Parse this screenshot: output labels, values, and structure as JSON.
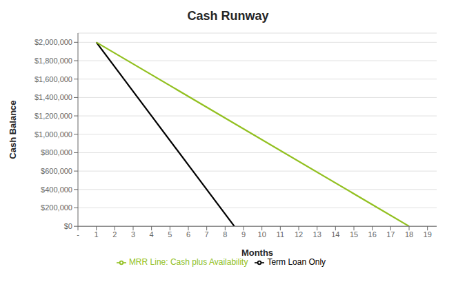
{
  "chart_data": {
    "type": "line",
    "title": "Cash Runway",
    "xlabel": "Months",
    "ylabel": "Cash Balance",
    "series": [
      {
        "name": "Term Loan Only",
        "color": "#000000",
        "x": [
          1,
          8.5
        ],
        "values": [
          2000000,
          0
        ]
      },
      {
        "name": "MRR Line: Cash plus Availability",
        "color": "#92c020",
        "x": [
          1,
          18
        ],
        "values": [
          2000000,
          0
        ]
      }
    ],
    "xlim": [
      0,
      19.5
    ],
    "xticks": [
      {
        "value": 0,
        "label": "-"
      },
      1,
      2,
      3,
      4,
      5,
      6,
      7,
      8,
      9,
      10,
      11,
      12,
      13,
      14,
      15,
      16,
      17,
      18,
      19
    ],
    "ylim": [
      0,
      2100000
    ],
    "yticks": [
      {
        "value": 0,
        "label": "$0"
      },
      {
        "value": 200000,
        "label": "$200,000"
      },
      {
        "value": 400000,
        "label": "$400,000"
      },
      {
        "value": 600000,
        "label": "$600,000"
      },
      {
        "value": 800000,
        "label": "$800,000"
      },
      {
        "value": 1000000,
        "label": "$1,000,000"
      },
      {
        "value": 1200000,
        "label": "$1,200,000"
      },
      {
        "value": 1400000,
        "label": "$1,400,000"
      },
      {
        "value": 1600000,
        "label": "$1,600,000"
      },
      {
        "value": 1800000,
        "label": "$1,800,000"
      },
      {
        "value": 2000000,
        "label": "$2,000,000"
      }
    ],
    "grid": true,
    "legend": "bottom"
  }
}
